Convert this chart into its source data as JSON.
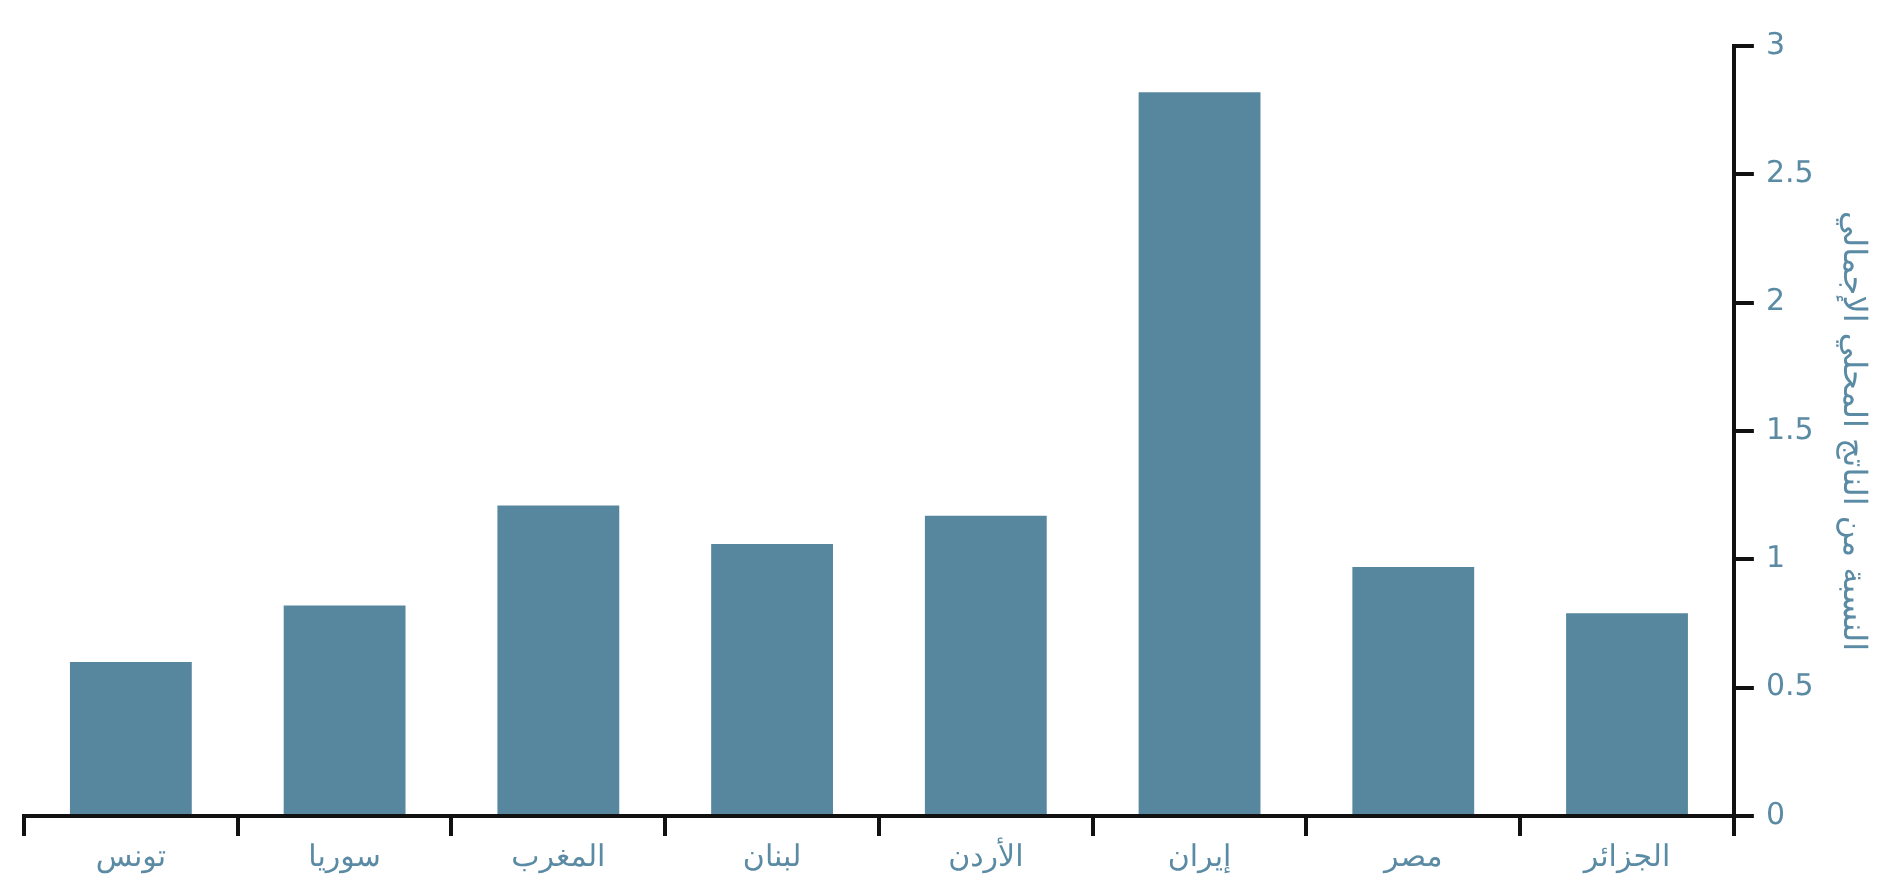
{
  "chart_data": {
    "type": "bar",
    "ylabel": "النسبة من الناتج المحلي الإجمالي",
    "categories": [
      "تونس",
      "سوريا",
      "المغرب",
      "لبنان",
      "الأردن",
      "إيران",
      "مصر",
      "الجزائر"
    ],
    "series": [
      {
        "color": "#56879f",
        "values": [
          0.6,
          0.82,
          1.21,
          1.06,
          1.17,
          2.82,
          0.97,
          0.79
        ]
      }
    ],
    "ylim": [
      0,
      3
    ],
    "yticks": [
      0,
      0.5,
      1,
      1.5,
      2,
      2.5,
      3
    ],
    "grid": false,
    "legend": false
  }
}
